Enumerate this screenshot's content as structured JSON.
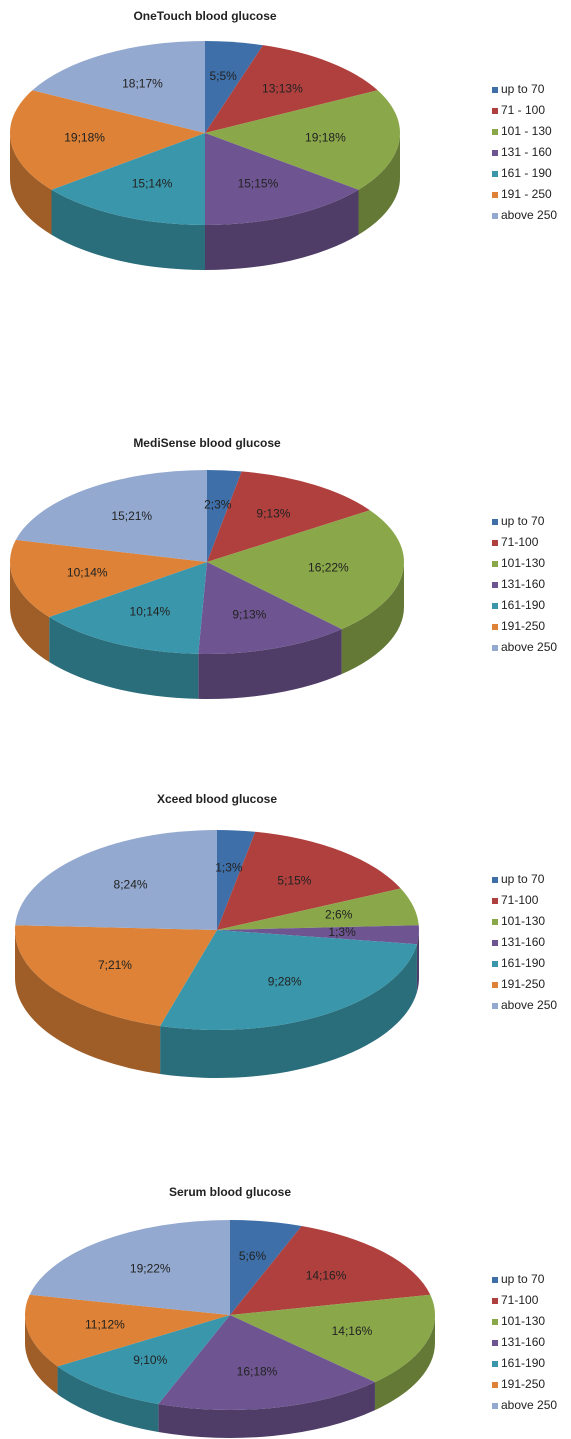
{
  "chart_data": [
    {
      "type": "pie",
      "title": "OneTouch blood glucose",
      "categories": [
        "up to 70",
        "71 - 100",
        "101 - 130",
        "131 - 160",
        "161 - 190",
        "191 - 250",
        "above 250"
      ],
      "values": [
        5,
        13,
        19,
        15,
        15,
        19,
        18
      ],
      "value_labels": [
        "5;5%",
        "13;13%",
        "19;18%",
        "15;15%",
        "15;14%",
        "19;18%",
        "18;17%"
      ],
      "colors": [
        "#3e6fa8",
        "#b0403e",
        "#8aa84a",
        "#6e5591",
        "#3a97ab",
        "#dd8236",
        "#93a9cf"
      ],
      "legend": "right"
    },
    {
      "type": "pie",
      "title": "MediSense blood glucose",
      "categories": [
        "up to 70",
        "71-100",
        "101-130",
        "131-160",
        "161-190",
        "191-250",
        "above 250"
      ],
      "values": [
        2,
        9,
        16,
        9,
        10,
        10,
        15
      ],
      "value_labels": [
        "2;3%",
        "9;13%",
        "16;22%",
        "9;13%",
        "10;14%",
        "10;14%",
        "15;21%"
      ],
      "colors": [
        "#3e6fa8",
        "#b0403e",
        "#8aa84a",
        "#6e5591",
        "#3a97ab",
        "#dd8236",
        "#93a9cf"
      ],
      "legend": "right"
    },
    {
      "type": "pie",
      "title": "Xceed blood glucose",
      "categories": [
        "up to 70",
        "71-100",
        "101-130",
        "131-160",
        "161-190",
        "191-250",
        "above 250"
      ],
      "values": [
        1,
        5,
        2,
        1,
        9,
        7,
        8
      ],
      "value_labels": [
        "1;3%",
        "5;15%",
        "2;6%",
        "1;3%",
        "9;28%",
        "7;21%",
        "8;24%"
      ],
      "colors": [
        "#3e6fa8",
        "#b0403e",
        "#8aa84a",
        "#6e5591",
        "#3a97ab",
        "#dd8236",
        "#93a9cf"
      ],
      "legend": "right"
    },
    {
      "type": "pie",
      "title": "Serum blood glucose",
      "categories": [
        "up to 70",
        "71-100",
        "101-130",
        "131-160",
        "161-190",
        "191-250",
        "above 250"
      ],
      "values": [
        5,
        14,
        14,
        16,
        9,
        11,
        19
      ],
      "value_labels": [
        "5;6%",
        "14;16%",
        "14;16%",
        "16;18%",
        "9;10%",
        "11;12%",
        "19;22%"
      ],
      "colors": [
        "#3e6fa8",
        "#b0403e",
        "#8aa84a",
        "#6e5591",
        "#3a97ab",
        "#dd8236",
        "#93a9cf"
      ],
      "legend": "right"
    }
  ]
}
